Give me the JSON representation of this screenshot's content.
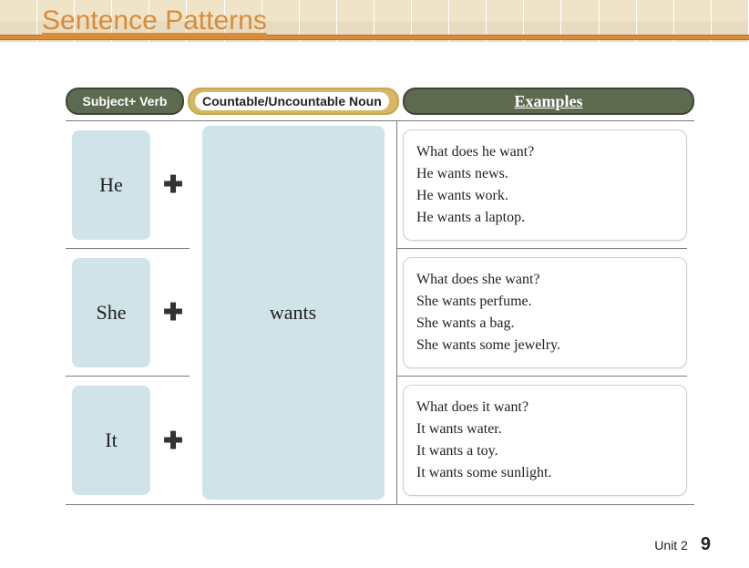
{
  "title": "Sentence Patterns",
  "headers": {
    "subject": "Subject+ Verb",
    "noun": "Countable/Uncountable Noun",
    "examples": "Examples"
  },
  "verb": "wants",
  "plus": "✚",
  "rows": [
    {
      "subject": "He",
      "example": "What does he want?\nHe wants news.\nHe wants work.\nHe wants a laptop."
    },
    {
      "subject": "She",
      "example": "What does she want?\nShe wants perfume.\nShe wants a bag.\nShe wants some jewelry."
    },
    {
      "subject": "It",
      "example": "What does it want?\nIt wants water.\nIt wants a toy.\nIt wants some sunlight."
    }
  ],
  "footer": {
    "unit": "Unit 2",
    "page": "9"
  },
  "colors": {
    "accent": "#d98c3a",
    "pill_dark": "#5e6a50",
    "pill_gold": "#d6b762",
    "cell_blue": "#cfe3e9"
  }
}
